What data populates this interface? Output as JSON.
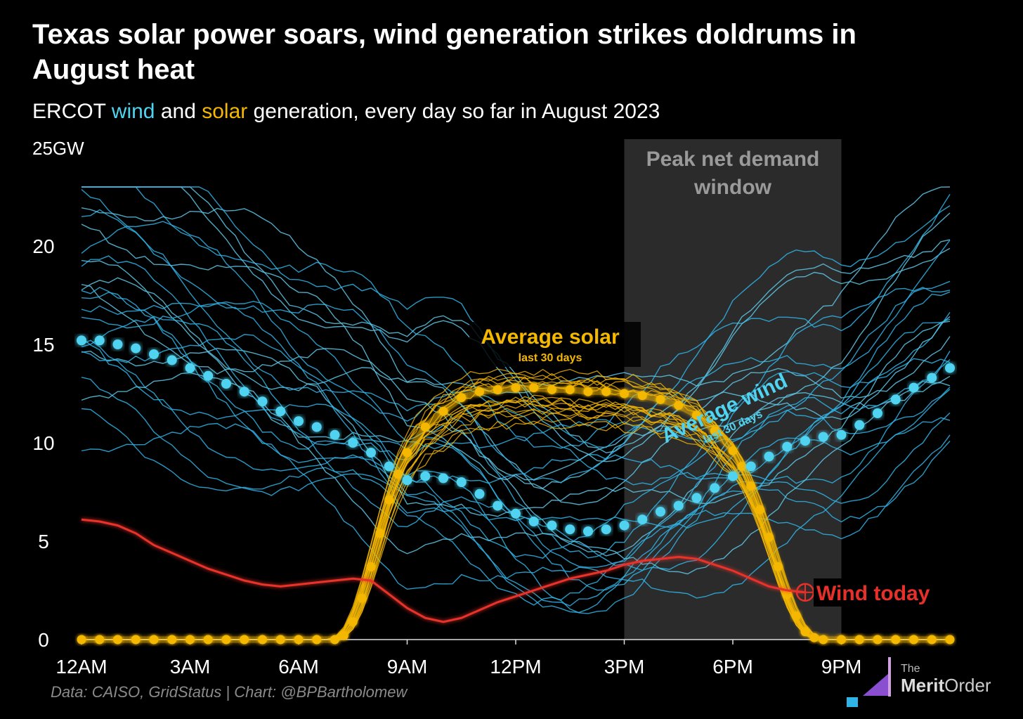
{
  "title": "Texas solar power soars, wind generation strikes doldrums in August heat",
  "subtitle": {
    "pre": "ERCOT ",
    "wind": "wind",
    "mid": " and ",
    "solar": "solar",
    "post": " generation, every day so far in August 2023"
  },
  "source": "Data: CAISO, GridStatus | Chart: @BPBartholomew",
  "logo": {
    "line1": "The",
    "merit": "Merit",
    "order": "Order"
  },
  "colors": {
    "background": "#000000",
    "wind": "#2fb4e8",
    "wind_avg": "#4fd3f0",
    "solar": "#f5b800",
    "wind_today": "#e8302a",
    "shade": "#2b2b2b"
  },
  "chart_data": {
    "type": "line",
    "title": "Texas solar power soars, wind generation strikes doldrums in August heat",
    "ylabel": "GW",
    "ylim": [
      0,
      25
    ],
    "xlim": [
      0,
      24
    ],
    "y_ticks": [
      0,
      5,
      10,
      15,
      20,
      25
    ],
    "y_tick_labels": [
      "0",
      "5",
      "10",
      "15",
      "20",
      "25"
    ],
    "y_unit_label": "GW",
    "x_ticks": [
      0,
      3,
      6,
      9,
      12,
      15,
      18,
      21
    ],
    "x_tick_labels": [
      "12AM",
      "3AM",
      "6AM",
      "9AM",
      "12PM",
      "3PM",
      "6PM",
      "9PM"
    ],
    "shaded_region": {
      "x": [
        15,
        21
      ],
      "label_line1": "Peak net demand",
      "label_line2": "window"
    },
    "annotations": {
      "avg_solar": "Average solar",
      "avg_solar_sub": "last 30 days",
      "avg_wind": "Average wind",
      "avg_wind_sub": "last 30 days",
      "wind_today": "Wind today"
    },
    "series": [
      {
        "name": "Average solar",
        "x": [
          0,
          0.5,
          1,
          1.5,
          2,
          2.5,
          3,
          3.5,
          4,
          4.5,
          5,
          5.5,
          6,
          6.5,
          7,
          7.25,
          7.5,
          7.75,
          8,
          8.25,
          8.5,
          8.75,
          9,
          9.5,
          10,
          10.5,
          11,
          11.5,
          12,
          12.5,
          13,
          13.5,
          14,
          14.5,
          15,
          15.5,
          16,
          16.5,
          17,
          17.5,
          18,
          18.25,
          18.5,
          18.75,
          19,
          19.25,
          19.5,
          19.75,
          20,
          20.25,
          20.5,
          21,
          21.5,
          22,
          22.5,
          23,
          23.5,
          24
        ],
        "values": [
          0,
          0,
          0,
          0,
          0,
          0,
          0,
          0,
          0,
          0,
          0,
          0,
          0,
          0,
          0,
          0.2,
          0.9,
          2.1,
          3.7,
          5.4,
          7.1,
          8.4,
          9.5,
          10.8,
          11.6,
          12.3,
          12.6,
          12.7,
          12.8,
          12.8,
          12.7,
          12.7,
          12.6,
          12.6,
          12.5,
          12.4,
          12.2,
          11.9,
          11.4,
          10.6,
          9.6,
          8.8,
          7.8,
          6.6,
          5.2,
          3.7,
          2.3,
          1.2,
          0.4,
          0.1,
          0,
          0,
          0,
          0,
          0,
          0,
          0,
          0
        ]
      },
      {
        "name": "Average wind",
        "x": [
          0,
          0.5,
          1,
          1.5,
          2,
          2.5,
          3,
          3.5,
          4,
          4.5,
          5,
          5.5,
          6,
          6.5,
          7,
          7.5,
          8,
          8.5,
          9,
          9.5,
          10,
          10.5,
          11,
          11.5,
          12,
          12.5,
          13,
          13.5,
          14,
          14.5,
          15,
          15.5,
          16,
          16.5,
          17,
          17.5,
          18,
          18.5,
          19,
          19.5,
          20,
          20.5,
          21,
          21.5,
          22,
          22.5,
          23,
          23.5,
          24
        ],
        "values": [
          15.2,
          15.2,
          15.0,
          14.8,
          14.5,
          14.2,
          13.8,
          13.4,
          13.0,
          12.6,
          12.1,
          11.6,
          11.1,
          10.8,
          10.4,
          10.0,
          9.5,
          8.8,
          8.1,
          8.3,
          8.2,
          8.0,
          7.4,
          6.8,
          6.4,
          6.0,
          5.8,
          5.6,
          5.5,
          5.6,
          5.8,
          6.1,
          6.5,
          6.8,
          7.2,
          7.7,
          8.3,
          8.8,
          9.3,
          9.8,
          10.1,
          10.3,
          10.4,
          10.9,
          11.5,
          12.2,
          12.8,
          13.3,
          13.8
        ]
      },
      {
        "name": "Wind today",
        "x": [
          0,
          0.5,
          1,
          1.5,
          2,
          2.5,
          3,
          3.5,
          4,
          4.5,
          5,
          5.5,
          6,
          6.5,
          7,
          7.5,
          8,
          8.5,
          9,
          9.5,
          10,
          10.5,
          11,
          11.5,
          12,
          12.5,
          13,
          13.5,
          14,
          14.5,
          15,
          15.5,
          16,
          16.5,
          17,
          17.5,
          18,
          18.5,
          19,
          19.5,
          20
        ],
        "values": [
          6.1,
          6.0,
          5.8,
          5.4,
          4.8,
          4.4,
          4.0,
          3.6,
          3.3,
          3.0,
          2.8,
          2.7,
          2.8,
          2.9,
          3.0,
          3.1,
          3.0,
          2.3,
          1.6,
          1.1,
          0.9,
          1.1,
          1.5,
          1.9,
          2.2,
          2.5,
          2.8,
          3.1,
          3.3,
          3.5,
          3.8,
          4.0,
          4.1,
          4.2,
          4.1,
          3.8,
          3.5,
          3.1,
          2.7,
          2.5,
          2.4
        ]
      }
    ]
  }
}
